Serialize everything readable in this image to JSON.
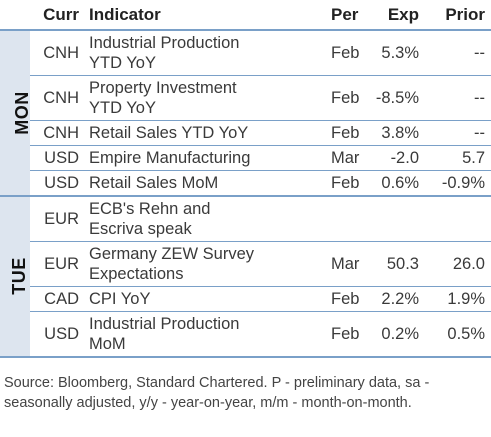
{
  "header": {
    "curr": "Curr",
    "indicator": "Indicator",
    "per": "Per",
    "exp": "Exp",
    "prior": "Prior"
  },
  "days": [
    {
      "label": "MON",
      "rows": [
        {
          "curr": "CNH",
          "indicator_lines": [
            "Industrial Production",
            "YTD YoY"
          ],
          "per": "Feb",
          "exp": "5.3%",
          "prior": "--"
        },
        {
          "curr": "CNH",
          "indicator_lines": [
            "Property Investment",
            "YTD YoY"
          ],
          "per": "Feb",
          "exp": "-8.5%",
          "prior": "--"
        },
        {
          "curr": "CNH",
          "indicator_lines": [
            "Retail Sales YTD YoY"
          ],
          "per": "Feb",
          "exp": "3.8%",
          "prior": "--"
        },
        {
          "curr": "USD",
          "indicator_lines": [
            "Empire Manufacturing"
          ],
          "per": "Mar",
          "exp": "-2.0",
          "prior": "5.7"
        },
        {
          "curr": "USD",
          "indicator_lines": [
            "Retail Sales MoM"
          ],
          "per": "Feb",
          "exp": "0.6%",
          "prior": "-0.9%"
        }
      ]
    },
    {
      "label": "TUE",
      "rows": [
        {
          "curr": "EUR",
          "indicator_lines": [
            "ECB's Rehn and",
            "Escriva speak"
          ],
          "per": "",
          "exp": "",
          "prior": ""
        },
        {
          "curr": "EUR",
          "indicator_lines": [
            "Germany ZEW Survey",
            "Expectations"
          ],
          "per": "Mar",
          "exp": "50.3",
          "prior": "26.0"
        },
        {
          "curr": "CAD",
          "indicator_lines": [
            "CPI YoY"
          ],
          "per": "Feb",
          "exp": "2.2%",
          "prior": "1.9%"
        },
        {
          "curr": "USD",
          "indicator_lines": [
            "Industrial Production",
            "MoM"
          ],
          "per": "Feb",
          "exp": "0.2%",
          "prior": "0.5%"
        }
      ]
    }
  ],
  "source_note": "Source: Bloomberg, Standard Chartered. P - preliminary data, sa - seasonally adjusted, y/y - year-on-year, m/m - month-on-month."
}
